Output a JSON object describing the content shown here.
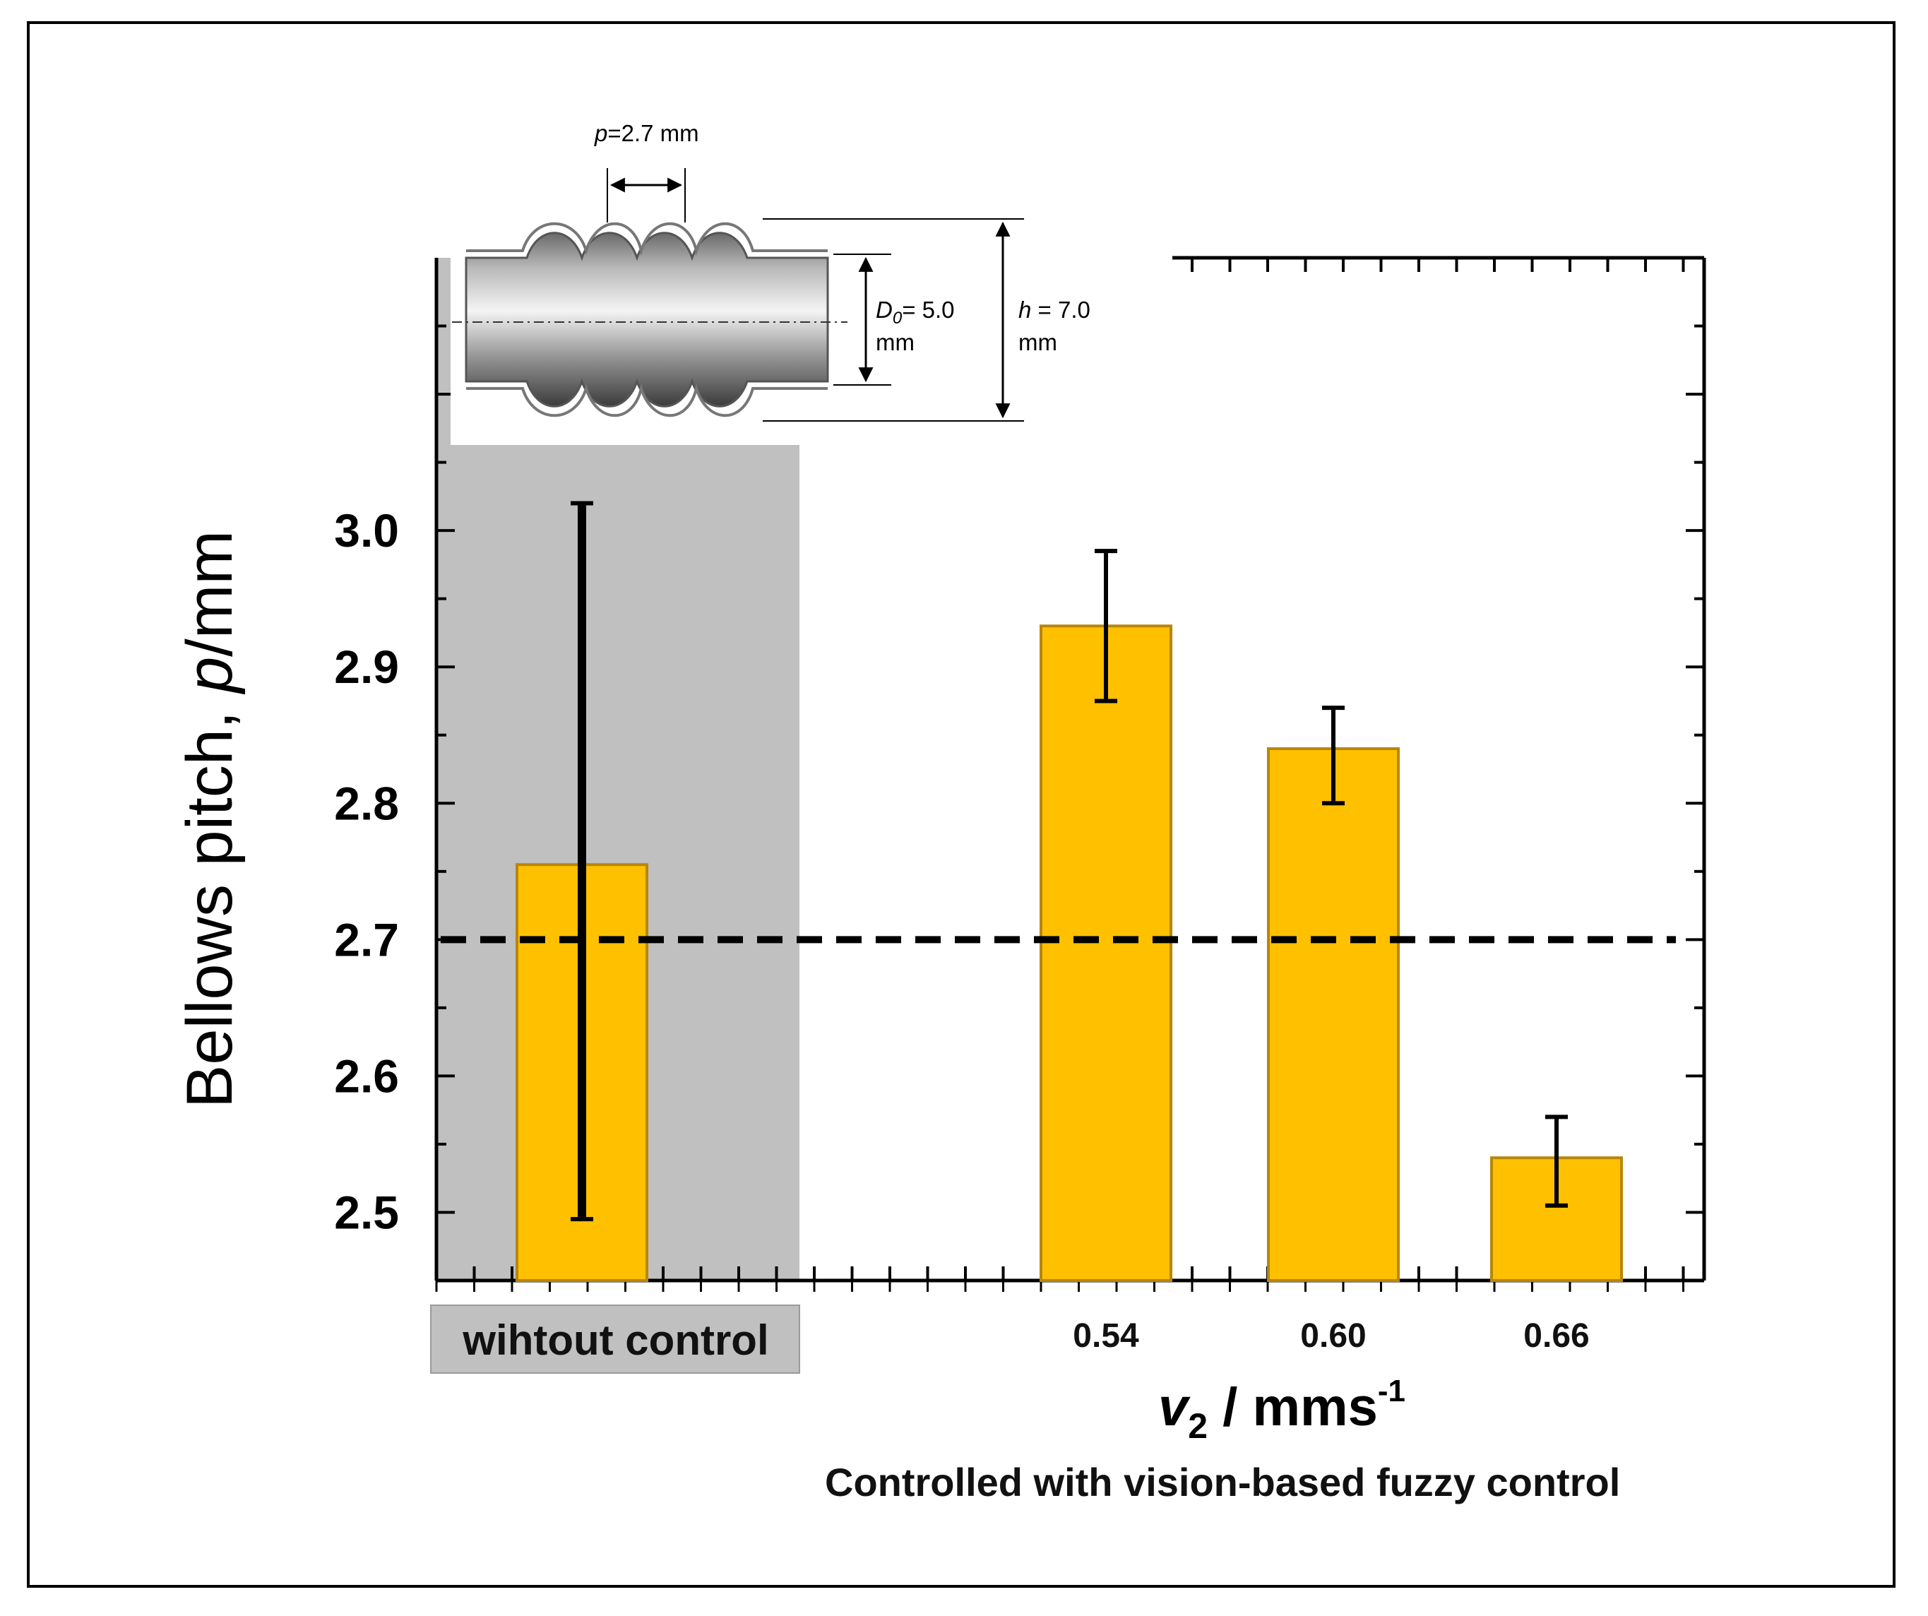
{
  "chart_data": {
    "type": "bar",
    "categories": [
      "wihtout control",
      "0.54",
      "0.60",
      "0.66"
    ],
    "values": [
      2.755,
      2.93,
      2.84,
      2.54
    ],
    "error_upper": [
      3.02,
      2.985,
      2.87,
      2.57
    ],
    "error_lower": [
      2.495,
      2.875,
      2.8,
      2.505
    ],
    "reference_line": 2.7,
    "ylim": [
      2.45,
      3.2
    ],
    "yticks": [
      "2.5",
      "2.6",
      "2.7",
      "2.8",
      "2.9",
      "3.0"
    ],
    "ylabel_prefix": "Bellows pitch, ",
    "ylabel_var": "p",
    "ylabel_suffix": "/mm",
    "xlabel_var": "v",
    "xlabel_sub": "2",
    "xlabel_unit": " / mms",
    "xlabel_sup": "-1",
    "group_note": "Controlled with vision-based fuzzy control",
    "uncontrolled_label": "wihtout control",
    "bar_color": "#FFC000",
    "bar_edge_color": "#B8860B",
    "shade_color": "#C0C0C0"
  },
  "inset": {
    "pitch_var": "p",
    "pitch_text": "=2.7 mm",
    "d0_var": "D",
    "d0_sub": "0",
    "d0_text": "= 5.0",
    "d0_unit": "mm",
    "h_var": "h",
    "h_text": " = 7.0",
    "h_unit": "mm"
  }
}
